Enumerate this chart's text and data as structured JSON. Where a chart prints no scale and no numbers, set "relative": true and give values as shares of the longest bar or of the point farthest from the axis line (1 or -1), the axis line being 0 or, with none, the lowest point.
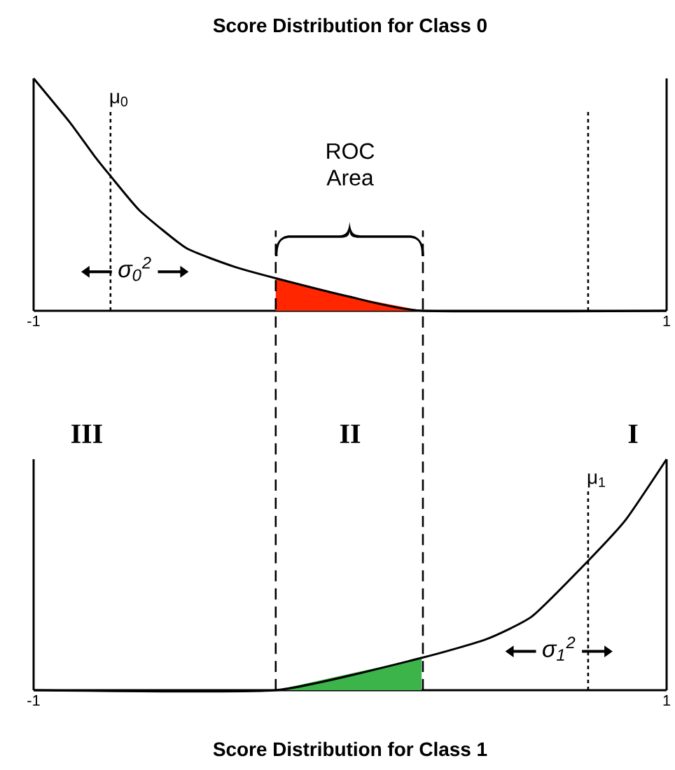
{
  "chart_data": [
    {
      "type": "line",
      "title": "Score Distribution for Class 0",
      "relative": true,
      "xlim": [
        -1,
        1
      ],
      "xticks": [
        -1,
        1
      ],
      "series": [
        {
          "color": "#000000",
          "x": [
            -1,
            -0.885,
            -0.81,
            -0.757,
            -0.664,
            -0.518,
            -0.367,
            -0.235,
            0,
            0.23,
            1
          ],
          "values": [
            1,
            0.81,
            0.67,
            0.58,
            0.43,
            0.27,
            0.19,
            0.14,
            0.06,
            0,
            0
          ]
        },
        {
          "type": "area",
          "color": "#ff2600",
          "x": [
            -0.235,
            0,
            0.23
          ],
          "values": [
            0.14,
            0.06,
            0
          ]
        }
      ],
      "ref_lines": [
        {
          "axis": "x",
          "value": -0.757,
          "label": "μ$_{0}$",
          "line_style": "dotted"
        },
        {
          "axis": "x",
          "value": 0.752,
          "line_style": "dotted"
        }
      ],
      "annotations": [
        "σ$_{0}$$^{2}$",
        "ROC Area"
      ]
    },
    {
      "type": "line",
      "title": "Score Distribution for Class 1",
      "relative": true,
      "xlim": [
        -1,
        1
      ],
      "xticks": [
        -1,
        1
      ],
      "series": [
        {
          "color": "#000000",
          "x": [
            -1,
            -0.235,
            0.226,
            0.429,
            0.575,
            0.752,
            0.872,
            1
          ],
          "values": [
            0,
            0,
            0.14,
            0.22,
            0.32,
            0.56,
            0.74,
            1
          ]
        },
        {
          "type": "area",
          "color": "#3cb44a",
          "x": [
            -0.235,
            0.226
          ],
          "values": [
            0,
            0.14
          ]
        }
      ],
      "ref_lines": [
        {
          "axis": "x",
          "value": 0.752,
          "label": "μ$_{1}$",
          "line_style": "dotted"
        },
        {
          "axis": "x",
          "value": -0.235,
          "line_style": "dashed"
        },
        {
          "axis": "x",
          "value": 0.23,
          "line_style": "dashed"
        }
      ],
      "annotations": [
        "σ$_{1}$$^{2}$",
        "III",
        "II",
        "I"
      ]
    }
  ]
}
